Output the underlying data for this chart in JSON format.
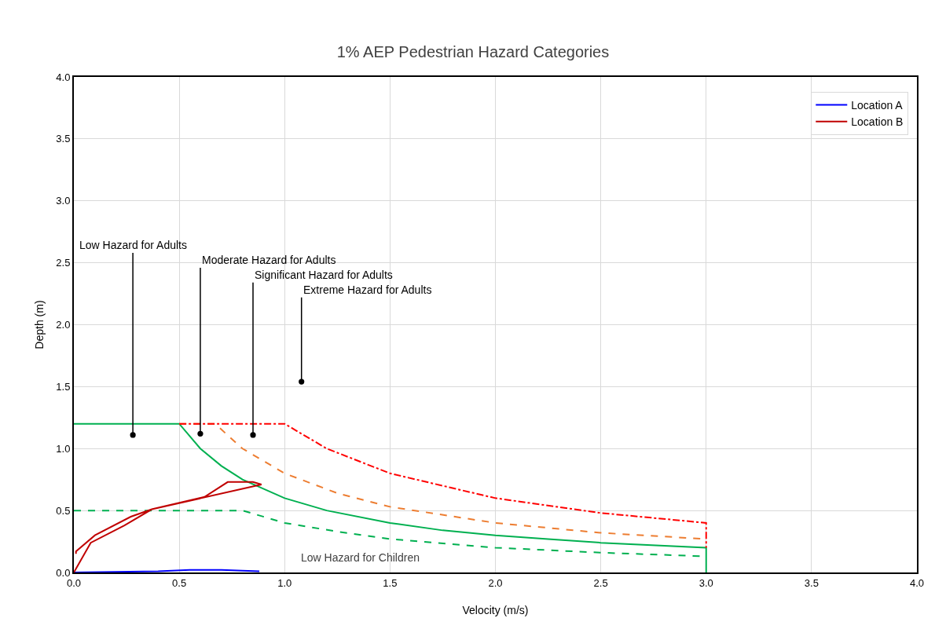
{
  "chart_data": {
    "type": "line",
    "title": "1% AEP Pedestrian Hazard Categories",
    "xlabel": "Velocity (m/s)",
    "ylabel": "Depth (m)",
    "xlim": [
      0,
      4
    ],
    "xticks": [
      {
        "value": 0,
        "label": "0.0"
      },
      {
        "value": 0.5,
        "label": "0.5"
      },
      {
        "value": 1,
        "label": "1.0"
      },
      {
        "value": 1.5,
        "label": "1.5"
      },
      {
        "value": 2,
        "label": "2.0"
      },
      {
        "value": 2.5,
        "label": "2.5"
      },
      {
        "value": 3,
        "label": "3.0"
      },
      {
        "value": 3.5,
        "label": "3.5"
      },
      {
        "value": 4,
        "label": "4.0"
      }
    ],
    "ylim": [
      0,
      4
    ],
    "yticks": [
      {
        "value": 0,
        "label": "0.0"
      },
      {
        "value": 0.5,
        "label": "0.5"
      },
      {
        "value": 1,
        "label": "1.0"
      },
      {
        "value": 1.5,
        "label": "1.5"
      },
      {
        "value": 2,
        "label": "2.0"
      },
      {
        "value": 2.5,
        "label": "2.5"
      },
      {
        "value": 3,
        "label": "3.0"
      },
      {
        "value": 3.5,
        "label": "3.5"
      },
      {
        "value": 4,
        "label": "4.0"
      }
    ],
    "grid": true,
    "legend": "top right",
    "marker": "none",
    "series": [
      {
        "color": "#00b050",
        "line_style": "dashed",
        "x": [
          0,
          0.8,
          1,
          1.25,
          1.5,
          2,
          2.5,
          3
        ],
        "values": [
          0.5,
          0.5,
          0.4,
          0.33,
          0.27,
          0.2,
          0.16,
          0.13
        ]
      },
      {
        "color": "#00b050",
        "line_style": "solid",
        "x": [
          0,
          0.5,
          0.6,
          0.7,
          0.8,
          1,
          1.2,
          1.5,
          1.75,
          2,
          2.25,
          2.5,
          3,
          3
        ],
        "values": [
          1.2,
          1.2,
          1,
          0.86,
          0.75,
          0.6,
          0.5,
          0.4,
          0.34,
          0.3,
          0.27,
          0.24,
          0.2,
          0
        ]
      },
      {
        "color": "#ed7d31",
        "line_style": "dashed",
        "x": [
          0.5,
          0.67,
          0.8,
          1,
          1.25,
          1.5,
          2,
          2.5,
          3
        ],
        "values": [
          1.2,
          1.2,
          1,
          0.8,
          0.64,
          0.53,
          0.4,
          0.32,
          0.27
        ]
      },
      {
        "color": "#ff0000",
        "line_style": "dashdot",
        "x": [
          0.5,
          1,
          1.2,
          1.5,
          2,
          2.5,
          3,
          3
        ],
        "values": [
          1.2,
          1.2,
          1,
          0.8,
          0.6,
          0.48,
          0.4,
          0.2
        ]
      },
      {
        "name": "Location A",
        "color": "#0000ff",
        "line_style": "solid",
        "x": [
          0,
          0.2,
          0.4,
          0.55,
          0.7,
          0.8,
          0.88
        ],
        "values": [
          0,
          0.005,
          0.01,
          0.02,
          0.02,
          0.015,
          0.01
        ]
      },
      {
        "name": "Location B",
        "color": "#c00000",
        "line_style": "solid",
        "x": [
          0,
          0.08,
          0.24,
          0.37,
          0.62,
          0.73,
          0.85,
          0.89,
          0.37,
          0.27,
          0.1,
          0.01,
          0.01
        ],
        "values": [
          0,
          0.24,
          0.38,
          0.51,
          0.61,
          0.73,
          0.73,
          0.71,
          0.51,
          0.45,
          0.3,
          0.17,
          0.15
        ]
      }
    ],
    "annotations": [
      {
        "text": "Low Hazard for Adults",
        "x": 0.28,
        "y": 1.11
      },
      {
        "text": "Moderate Hazard for Adults",
        "x": 0.6,
        "y": 1.12
      },
      {
        "text": "Significant Hazard for Adults",
        "x": 0.85,
        "y": 1.11
      },
      {
        "text": "Extreme Hazard for Adults",
        "x": 1.08,
        "y": 1.54
      },
      "Low Hazard for Children"
    ]
  }
}
